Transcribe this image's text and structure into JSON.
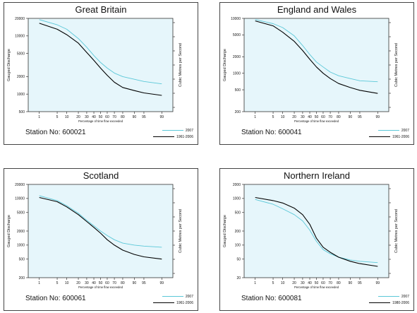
{
  "chart_data": [
    {
      "type": "line",
      "title": "Great Britain",
      "xlabel": "Percentage of time flow exceeded",
      "ylabel": "Gauged Discharge",
      "y2label": "Cubic Metres per Second",
      "station": "Station No: 600021",
      "log_y": true,
      "ylim": [
        500,
        20000
      ],
      "yticks": [
        500,
        1000,
        2000,
        5000,
        10000,
        20000
      ],
      "ytick_labels": [
        "500",
        "1000",
        "2000",
        "5000",
        "10000",
        "20000"
      ],
      "xticks": [
        1,
        5,
        10,
        20,
        30,
        40,
        50,
        60,
        70,
        80,
        90,
        95,
        99
      ],
      "x": [
        1,
        5,
        10,
        20,
        30,
        40,
        50,
        60,
        70,
        80,
        90,
        95,
        99
      ],
      "legend_position": "bottom-right",
      "grid": false,
      "series": [
        {
          "name": "2007",
          "color": "#5bc8d8",
          "values": [
            19000,
            15500,
            13000,
            9000,
            6400,
            4600,
            3500,
            2800,
            2300,
            2000,
            1800,
            1650,
            1500
          ]
        },
        {
          "name": "1961-2006",
          "color": "#000000",
          "values": [
            16500,
            13000,
            10500,
            7500,
            5200,
            3800,
            2800,
            2100,
            1600,
            1300,
            1150,
            1050,
            950
          ]
        }
      ]
    },
    {
      "type": "line",
      "title": "England and Wales",
      "xlabel": "Percentage of time flow exceeded",
      "ylabel": "Gauged Discharge",
      "y2label": "Cubic Metres per Second",
      "station": "Station No: 600041",
      "log_y": true,
      "ylim": [
        200,
        10000
      ],
      "yticks": [
        200,
        500,
        1000,
        2000,
        5000,
        10000
      ],
      "ytick_labels": [
        "200",
        "500",
        "1000",
        "2000",
        "5000",
        "10000"
      ],
      "xticks": [
        1,
        5,
        10,
        20,
        30,
        40,
        50,
        60,
        70,
        80,
        90,
        95,
        99
      ],
      "x": [
        1,
        5,
        10,
        20,
        30,
        40,
        50,
        60,
        70,
        80,
        90,
        95,
        99
      ],
      "legend_position": "bottom-right",
      "grid": false,
      "series": [
        {
          "name": "2007",
          "color": "#5bc8d8",
          "values": [
            9500,
            8000,
            6800,
            4800,
            3200,
            2200,
            1600,
            1300,
            1050,
            900,
            800,
            730,
            700
          ]
        },
        {
          "name": "1961-2006",
          "color": "#000000",
          "values": [
            9000,
            7300,
            5600,
            3800,
            2600,
            1800,
            1300,
            1000,
            800,
            650,
            550,
            490,
            430
          ]
        }
      ]
    },
    {
      "type": "line",
      "title": "Scotland",
      "xlabel": "Percentage of time flow exceeded",
      "ylabel": "Gauged Discharge",
      "y2label": "Cubic Metres per Second",
      "station": "Station No: 600061",
      "log_y": true,
      "ylim": [
        200,
        20000
      ],
      "yticks": [
        200,
        500,
        1000,
        2000,
        5000,
        10000,
        20000
      ],
      "ytick_labels": [
        "200",
        "500",
        "1000",
        "2000",
        "5000",
        "10000",
        "20000"
      ],
      "xticks": [
        1,
        5,
        10,
        20,
        30,
        40,
        50,
        60,
        70,
        80,
        90,
        95,
        99
      ],
      "x": [
        1,
        5,
        10,
        20,
        30,
        40,
        50,
        60,
        70,
        80,
        90,
        95,
        99
      ],
      "legend_position": "bottom-right",
      "grid": false,
      "series": [
        {
          "name": "2007",
          "color": "#5bc8d8",
          "values": [
            11500,
            9000,
            7000,
            4800,
            3400,
            2600,
            2000,
            1600,
            1300,
            1100,
            1000,
            950,
            900
          ]
        },
        {
          "name": "1961-2006",
          "color": "#000000",
          "values": [
            10500,
            8500,
            6600,
            4500,
            3200,
            2400,
            1800,
            1300,
            1000,
            780,
            630,
            560,
            500
          ]
        }
      ]
    },
    {
      "type": "line",
      "title": "Northern Ireland",
      "xlabel": "Percentage of time flow exceeded",
      "ylabel": "Gauged Discharge",
      "y2label": "Cubic Metres per Second",
      "station": "Station No: 600081",
      "log_y": true,
      "ylim": [
        20,
        2000
      ],
      "yticks": [
        20,
        50,
        100,
        200,
        500,
        1000,
        2000
      ],
      "ytick_labels": [
        "20",
        "50",
        "100",
        "200",
        "500",
        "1000",
        "2000"
      ],
      "xticks": [
        1,
        5,
        10,
        20,
        30,
        40,
        50,
        60,
        70,
        80,
        90,
        95,
        99
      ],
      "x": [
        1,
        5,
        10,
        20,
        30,
        40,
        50,
        60,
        70,
        80,
        90,
        95,
        99
      ],
      "legend_position": "bottom-right",
      "grid": false,
      "series": [
        {
          "name": "2007",
          "color": "#5bc8d8",
          "values": [
            950,
            750,
            600,
            450,
            330,
            210,
            120,
            80,
            65,
            55,
            48,
            45,
            42
          ]
        },
        {
          "name": "1980-2006",
          "color": "#000000",
          "values": [
            1050,
            900,
            800,
            620,
            450,
            280,
            140,
            90,
            70,
            55,
            45,
            40,
            35
          ]
        }
      ]
    }
  ]
}
